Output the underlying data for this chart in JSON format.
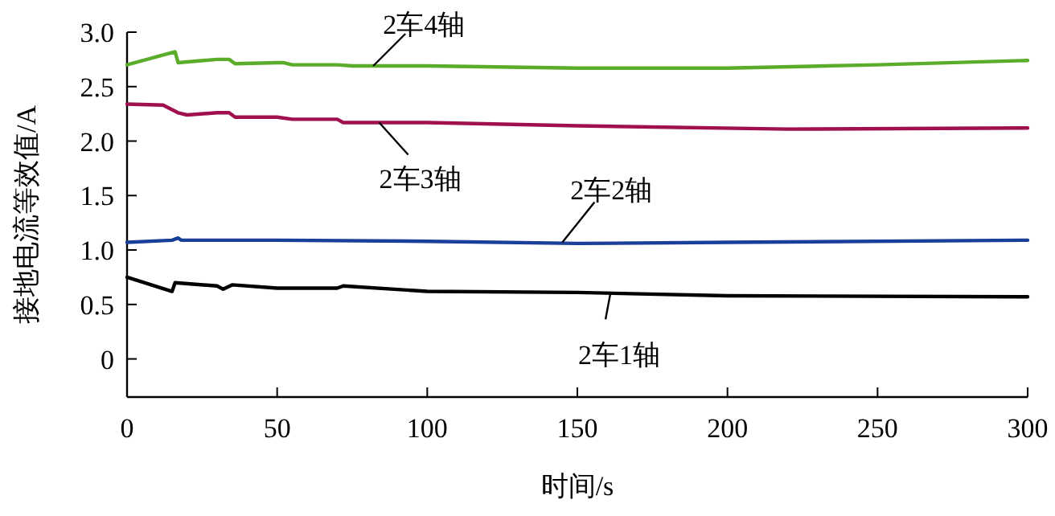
{
  "chart_data": {
    "type": "line",
    "xlabel": "时间/s",
    "ylabel": "接地电流等效值/A",
    "xlim": [
      0,
      300
    ],
    "ylim": [
      -0.35,
      3.0
    ],
    "xticks": [
      0,
      50,
      100,
      150,
      200,
      250,
      300
    ],
    "yticks": [
      0,
      0.5,
      {
        "value": 1,
        "label": "1.0"
      },
      1.5,
      {
        "value": 2,
        "label": "2.0"
      },
      2.5,
      {
        "value": 3,
        "label": "3.0"
      }
    ],
    "grid": false,
    "line_style": "solid",
    "marker": "none",
    "series": [
      {
        "color": "#5aac2a",
        "x": [
          0,
          16,
          17,
          30,
          34,
          36,
          50,
          52,
          55,
          70,
          75,
          100,
          150,
          200,
          250,
          300
        ],
        "values": [
          2.7,
          2.82,
          2.72,
          2.75,
          2.75,
          2.71,
          2.72,
          2.72,
          2.7,
          2.7,
          2.69,
          2.69,
          2.67,
          2.67,
          2.7,
          2.74
        ]
      },
      {
        "color": "#a0104f",
        "x": [
          0,
          12,
          17,
          20,
          30,
          34,
          36,
          50,
          55,
          70,
          72,
          100,
          150,
          220,
          300
        ],
        "values": [
          2.34,
          2.33,
          2.26,
          2.24,
          2.26,
          2.26,
          2.22,
          2.22,
          2.2,
          2.2,
          2.17,
          2.17,
          2.14,
          2.11,
          2.12
        ]
      },
      {
        "color": "#1a3f9a",
        "x": [
          0,
          15,
          17,
          18,
          50,
          100,
          150,
          200,
          300
        ],
        "values": [
          1.07,
          1.09,
          1.11,
          1.09,
          1.09,
          1.08,
          1.06,
          1.07,
          1.09
        ]
      },
      {
        "color": "#000000",
        "x": [
          0,
          15,
          16,
          30,
          32,
          35,
          50,
          70,
          72,
          100,
          150,
          200,
          300
        ],
        "values": [
          0.75,
          0.62,
          0.7,
          0.67,
          0.64,
          0.68,
          0.65,
          0.65,
          0.67,
          0.62,
          0.61,
          0.58,
          0.57
        ]
      }
    ],
    "annotations": [
      {
        "text": "2车4轴",
        "x": 82,
        "y": 2.69
      },
      {
        "text": "2车3轴",
        "x": 84,
        "y": 2.17
      },
      {
        "text": "2车2轴",
        "x": 145,
        "y": 1.07
      },
      {
        "text": "2车1轴",
        "x": 161,
        "y": 0.6
      }
    ]
  }
}
